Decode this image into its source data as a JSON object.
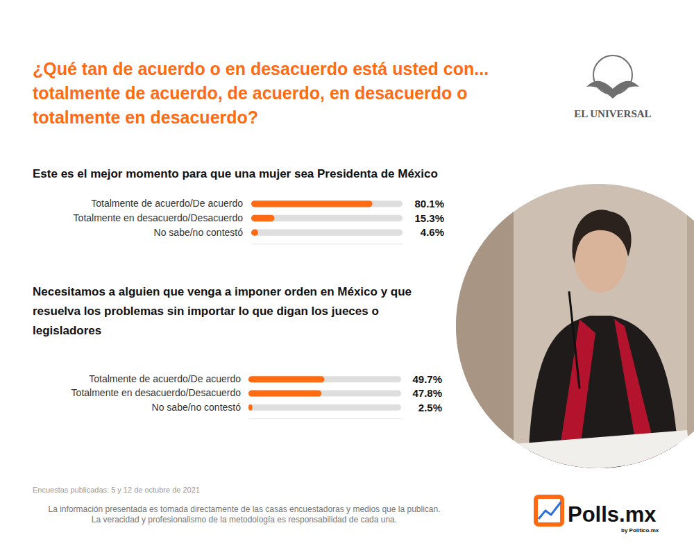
{
  "title": "¿Qué tan de acuerdo o en desacuerdo está usted con... totalmente de acuerdo, de acuerdo, en desacuerdo o totalmente en desacuerdo?",
  "chart_data": [
    {
      "type": "bar",
      "orientation": "horizontal",
      "title": "Este es el mejor momento para que una mujer sea Presidenta de México",
      "categories": [
        "Totalmente de acuerdo/De acuerdo",
        "Totalmente en desacuerdo/Desacuerdo",
        "No sabe/no contestó"
      ],
      "values": [
        80.1,
        15.3,
        4.6
      ],
      "value_labels": [
        "80.1%",
        "15.3%",
        "4.6%"
      ],
      "color": "#ff6b12",
      "xlim": [
        0,
        100
      ],
      "data_labels": true,
      "tick_labels": "y",
      "grid": false
    },
    {
      "type": "bar",
      "orientation": "horizontal",
      "title": "Necesitamos a alguien que venga a imponer orden en México y que resuelva los problemas sin importar lo que digan los jueces o legisladores",
      "categories": [
        "Totalmente de acuerdo/De acuerdo",
        "Totalmente en desacuerdo/Desacuerdo",
        "No sabe/no contestó"
      ],
      "values": [
        49.7,
        47.8,
        2.5
      ],
      "value_labels": [
        "49.7%",
        "47.8%",
        "2.5%"
      ],
      "color": "#ff6b12",
      "xlim": [
        0,
        100
      ],
      "data_labels": true,
      "tick_labels": "y",
      "grid": false
    }
  ],
  "source_date": "Encuestas publicadas: 5 y 12 de octubre de 2021",
  "disclaimer": [
    "La información presentada es tomada directamente de las casas encuestadoras y medios que la publican.",
    "La veracidad y profesionalismo de la metodología es responsabilidad de cada una."
  ],
  "logos": {
    "publisher": "EL UNIVERSAL",
    "brand": "Polls.mx",
    "brand_sub": "by Politico.mx"
  }
}
